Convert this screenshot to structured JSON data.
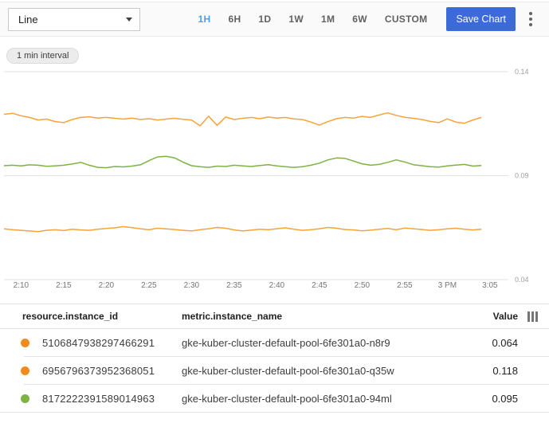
{
  "toolbar": {
    "chart_type": "Line",
    "ranges": [
      {
        "label": "1H",
        "active": true
      },
      {
        "label": "6H",
        "active": false
      },
      {
        "label": "1D",
        "active": false
      },
      {
        "label": "1W",
        "active": false
      },
      {
        "label": "1M",
        "active": false
      },
      {
        "label": "6W",
        "active": false
      },
      {
        "label": "CUSTOM",
        "active": false
      }
    ],
    "save_label": "Save Chart"
  },
  "chart": {
    "interval_label": "1 min interval"
  },
  "chart_data": {
    "type": "line",
    "title": "",
    "xlabel": "",
    "ylabel": "",
    "ylim": [
      0.04,
      0.14
    ],
    "grid": true,
    "legend_position": "table-below",
    "x_step_minutes": 1,
    "x_start_time": "2:08 PM",
    "y_ticks": [
      {
        "label": "0.14",
        "value": 0.14
      },
      {
        "label": "0.09",
        "value": 0.09
      },
      {
        "label": "0.04",
        "value": 0.04
      }
    ],
    "x_ticks": [
      {
        "label": "2:10",
        "minute": 2
      },
      {
        "label": "2:15",
        "minute": 7
      },
      {
        "label": "2:20",
        "minute": 12
      },
      {
        "label": "2:25",
        "minute": 17
      },
      {
        "label": "2:30",
        "minute": 22
      },
      {
        "label": "2:35",
        "minute": 27
      },
      {
        "label": "2:40",
        "minute": 32
      },
      {
        "label": "2:45",
        "minute": 37
      },
      {
        "label": "2:50",
        "minute": 42
      },
      {
        "label": "2:55",
        "minute": 47
      },
      {
        "label": "3 PM",
        "minute": 52
      },
      {
        "label": "3:05",
        "minute": 57
      }
    ],
    "series": [
      {
        "name": "gke-kuber-cluster-default-pool-6fe301a0-q35w",
        "color": "#f5a33b",
        "current_value": 0.118,
        "values": [
          0.1195,
          0.12,
          0.1188,
          0.118,
          0.1168,
          0.1172,
          0.116,
          0.1155,
          0.117,
          0.118,
          0.1183,
          0.1177,
          0.118,
          0.1176,
          0.1172,
          0.1177,
          0.117,
          0.1174,
          0.1168,
          0.1172,
          0.1176,
          0.1171,
          0.1168,
          0.114,
          0.1186,
          0.1142,
          0.1182,
          0.117,
          0.1176,
          0.118,
          0.1174,
          0.1182,
          0.1177,
          0.118,
          0.1173,
          0.117,
          0.1158,
          0.1143,
          0.116,
          0.1174,
          0.118,
          0.1177,
          0.1185,
          0.118,
          0.1192,
          0.1202,
          0.119,
          0.1181,
          0.1176,
          0.117,
          0.1161,
          0.1155,
          0.1173,
          0.1158,
          0.1152,
          0.1168,
          0.118
        ]
      },
      {
        "name": "gke-kuber-cluster-default-pool-6fe301a0-94ml",
        "color": "#7cb342",
        "current_value": 0.095,
        "values": [
          0.0948,
          0.095,
          0.0947,
          0.0952,
          0.095,
          0.0945,
          0.0947,
          0.095,
          0.0956,
          0.0964,
          0.095,
          0.094,
          0.0938,
          0.0944,
          0.0942,
          0.0946,
          0.0952,
          0.0972,
          0.099,
          0.0993,
          0.0986,
          0.0965,
          0.0948,
          0.0943,
          0.094,
          0.0946,
          0.0944,
          0.095,
          0.0947,
          0.0944,
          0.0949,
          0.0953,
          0.0947,
          0.0943,
          0.094,
          0.0943,
          0.095,
          0.096,
          0.0976,
          0.0985,
          0.0983,
          0.097,
          0.0957,
          0.095,
          0.0954,
          0.0964,
          0.0976,
          0.0966,
          0.0953,
          0.0948,
          0.0943,
          0.0941,
          0.0947,
          0.0951,
          0.0954,
          0.0946,
          0.0949
        ]
      },
      {
        "name": "gke-kuber-cluster-default-pool-6fe301a0-n8r9",
        "color": "#f5a33b",
        "current_value": 0.064,
        "values": [
          0.0644,
          0.064,
          0.0637,
          0.0634,
          0.0631,
          0.0637,
          0.064,
          0.0636,
          0.0642,
          0.0639,
          0.0637,
          0.0642,
          0.0646,
          0.0649,
          0.0655,
          0.065,
          0.0645,
          0.064,
          0.0647,
          0.0644,
          0.0641,
          0.0637,
          0.0634,
          0.064,
          0.0645,
          0.0651,
          0.0647,
          0.0639,
          0.0634,
          0.0638,
          0.0642,
          0.064,
          0.0645,
          0.0649,
          0.0642,
          0.0637,
          0.064,
          0.0645,
          0.0651,
          0.0647,
          0.0641,
          0.0639,
          0.0635,
          0.0638,
          0.0642,
          0.0646,
          0.064,
          0.0648,
          0.0645,
          0.0641,
          0.0637,
          0.064,
          0.0644,
          0.0647,
          0.0642,
          0.0639,
          0.0642
        ]
      }
    ]
  },
  "table": {
    "headers": [
      "resource.instance_id",
      "metric.instance_name",
      "Value"
    ],
    "rows": [
      {
        "color": "#f28b1e",
        "id": "5106847938297466291",
        "name": "gke-kuber-cluster-default-pool-6fe301a0-n8r9",
        "value": "0.064"
      },
      {
        "color": "#f28b1e",
        "id": "6956796373952368051",
        "name": "gke-kuber-cluster-default-pool-6fe301a0-q35w",
        "value": "0.118"
      },
      {
        "color": "#7cb342",
        "id": "8172222391589014963",
        "name": "gke-kuber-cluster-default-pool-6fe301a0-94ml",
        "value": "0.095"
      }
    ]
  },
  "colors": {
    "save_button_blue": "#3c6bd9",
    "active_range_blue": "#4c9ef5",
    "series_orange": "#f5a33b",
    "series_green": "#7cb342",
    "gridline_gray": "#e0e0e0"
  }
}
